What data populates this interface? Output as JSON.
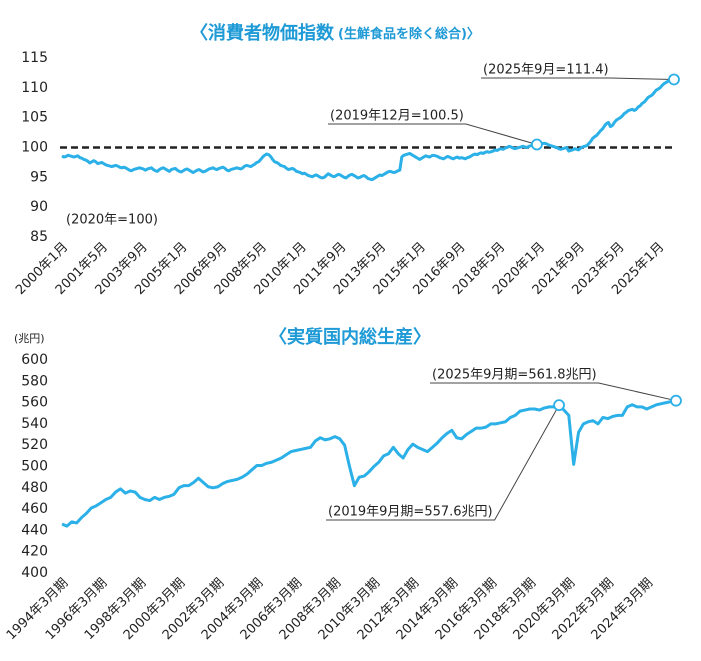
{
  "chart_data": [
    {
      "type": "line",
      "title": "〈消費者物価指数",
      "subtitle": "(生鮮食品を除く総合)〉",
      "note": "(2020年=100)",
      "color": "#2bb0e8",
      "ylim": [
        85,
        115
      ],
      "yticks": [
        85,
        90,
        95,
        100,
        105,
        110,
        115
      ],
      "reference_line": 100,
      "annotations": [
        {
          "label": "(2025年9月=111.4)",
          "value": 111.4
        },
        {
          "label": "(2019年12月=100.5)",
          "value": 100.5
        }
      ],
      "categories": [
        "2000年1月",
        null,
        null,
        null,
        null,
        null,
        null,
        null,
        null,
        null,
        null,
        null,
        null,
        null,
        null,
        null,
        null,
        null,
        null,
        null,
        "2001年5月",
        null,
        null,
        null,
        null,
        null,
        null,
        null,
        null,
        null,
        null,
        null,
        null,
        null,
        null,
        null,
        null,
        null,
        null,
        null,
        "2003年9月",
        null,
        null,
        null,
        null,
        null,
        null,
        null,
        null,
        null,
        null,
        null,
        null,
        null,
        null,
        null,
        null,
        null,
        null,
        null,
        "2005年1月",
        null,
        null,
        null,
        null,
        null,
        null,
        null,
        null,
        null,
        null,
        null,
        null,
        null,
        null,
        null,
        null,
        null,
        null,
        null,
        "2006年9月",
        null,
        null,
        null,
        null,
        null,
        null,
        null,
        null,
        null,
        null,
        null,
        null,
        null,
        null,
        null,
        null,
        null,
        null,
        null,
        "2008年5月",
        null,
        null,
        null,
        null,
        null,
        null,
        null,
        null,
        null,
        null,
        null,
        null,
        null,
        null,
        null,
        null,
        null,
        null,
        null,
        "2010年1月",
        null,
        null,
        null,
        null,
        null,
        null,
        null,
        null,
        null,
        null,
        null,
        null,
        null,
        null,
        null,
        null,
        null,
        null,
        null,
        "2011年9月",
        null,
        null,
        null,
        null,
        null,
        null,
        null,
        null,
        null,
        null,
        null,
        null,
        null,
        null,
        null,
        null,
        null,
        null,
        null,
        "2013年5月",
        null,
        null,
        null,
        null,
        null,
        null,
        null,
        null,
        null,
        null,
        null,
        null,
        null,
        null,
        null,
        null,
        null,
        null,
        null,
        "2015年1月",
        null,
        null,
        null,
        null,
        null,
        null,
        null,
        null,
        null,
        null,
        null,
        null,
        null,
        null,
        null,
        null,
        null,
        null,
        null,
        "2016年9月",
        null,
        null,
        null,
        null,
        null,
        null,
        null,
        null,
        null,
        null,
        null,
        null,
        null,
        null,
        null,
        null,
        null,
        null,
        null,
        "2018年5月",
        null,
        null,
        null,
        null,
        null,
        null,
        null,
        null,
        null,
        null,
        null,
        null,
        null,
        null,
        null,
        null,
        null,
        null,
        null,
        "2020年1月",
        null,
        null,
        null,
        null,
        null,
        null,
        null,
        null,
        null,
        null,
        null,
        null,
        null,
        null,
        null,
        null,
        null,
        null,
        null,
        "2021年9月",
        null,
        null,
        null,
        null,
        null,
        null,
        null,
        null,
        null,
        null,
        null,
        null,
        null,
        null,
        null,
        null,
        null,
        null,
        null,
        "2023年5月",
        null,
        null,
        null,
        null,
        null,
        null,
        null,
        null,
        null,
        null,
        null,
        null,
        null,
        null,
        null,
        null,
        null,
        null,
        null,
        "2025年1月",
        null,
        null,
        null,
        null,
        null,
        null,
        null,
        null
      ],
      "values": [
        98.6,
        98.4,
        98.5,
        98.7,
        98.6,
        98.5,
        98.4,
        98.5,
        98.6,
        98.3,
        98.2,
        98.0,
        97.9,
        97.7,
        97.4,
        97.6,
        97.8,
        97.6,
        97.3,
        97.4,
        97.5,
        97.3,
        97.1,
        97.0,
        96.9,
        96.8,
        96.9,
        97.0,
        96.9,
        96.7,
        96.6,
        96.7,
        96.6,
        96.4,
        96.2,
        96.1,
        96.3,
        96.4,
        96.5,
        96.6,
        96.5,
        96.4,
        96.2,
        96.4,
        96.5,
        96.6,
        96.3,
        96.1,
        96.0,
        96.3,
        96.5,
        96.6,
        96.4,
        96.2,
        96.0,
        96.3,
        96.4,
        96.5,
        96.2,
        96.0,
        95.9,
        96.1,
        96.3,
        96.4,
        96.2,
        96.0,
        95.8,
        96.0,
        96.2,
        96.3,
        96.1,
        95.9,
        96.0,
        96.2,
        96.4,
        96.5,
        96.6,
        96.4,
        96.3,
        96.5,
        96.6,
        96.7,
        96.5,
        96.2,
        96.1,
        96.3,
        96.4,
        96.5,
        96.6,
        96.5,
        96.4,
        96.6,
        96.9,
        97.0,
        96.9,
        96.8,
        97.0,
        97.2,
        97.5,
        97.6,
        98.0,
        98.4,
        98.7,
        98.9,
        98.8,
        98.5,
        98.0,
        97.6,
        97.5,
        97.3,
        97.0,
        96.9,
        96.8,
        96.5,
        96.3,
        96.4,
        96.5,
        96.3,
        96.0,
        95.9,
        95.8,
        95.6,
        95.7,
        95.5,
        95.3,
        95.2,
        95.1,
        95.3,
        95.4,
        95.2,
        95.0,
        94.9,
        95.0,
        95.3,
        95.6,
        95.4,
        95.2,
        95.1,
        95.3,
        95.5,
        95.4,
        95.2,
        95.0,
        94.9,
        95.2,
        95.4,
        95.5,
        95.3,
        95.1,
        94.9,
        95.0,
        95.2,
        95.3,
        95.1,
        94.8,
        94.7,
        94.6,
        94.8,
        95.0,
        95.2,
        95.4,
        95.3,
        95.5,
        95.7,
        95.9,
        96.0,
        95.9,
        95.8,
        95.9,
        96.1,
        96.2,
        98.4,
        98.7,
        98.8,
        98.9,
        99.0,
        98.8,
        98.6,
        98.4,
        98.2,
        98.0,
        98.2,
        98.4,
        98.6,
        98.5,
        98.4,
        98.6,
        98.7,
        98.6,
        98.5,
        98.3,
        98.2,
        98.1,
        98.3,
        98.5,
        98.4,
        98.2,
        98.1,
        98.3,
        98.4,
        98.2,
        98.3,
        98.2,
        98.1,
        98.3,
        98.4,
        98.6,
        98.8,
        98.9,
        98.8,
        99.0,
        99.1,
        99.0,
        99.2,
        99.3,
        99.2,
        99.3,
        99.4,
        99.6,
        99.5,
        99.7,
        99.8,
        99.7,
        99.9,
        100.0,
        100.2,
        100.1,
        99.9,
        99.8,
        99.9,
        100.0,
        100.1,
        100.2,
        100.1,
        100.0,
        100.2,
        100.3,
        100.4,
        100.6,
        100.5,
        100.4,
        100.6,
        100.7,
        100.7,
        100.6,
        100.4,
        100.3,
        100.2,
        100.1,
        100.0,
        99.8,
        99.7,
        99.8,
        99.9,
        100.0,
        99.4,
        99.5,
        99.6,
        99.8,
        99.7,
        99.6,
        99.9,
        100.1,
        100.2,
        100.3,
        100.6,
        101.0,
        101.5,
        101.8,
        102.0,
        102.4,
        102.8,
        103.1,
        103.6,
        104.0,
        104.2,
        103.5,
        103.7,
        104.2,
        104.6,
        104.8,
        105.0,
        105.3,
        105.7,
        105.9,
        106.2,
        106.3,
        106.4,
        106.2,
        106.4,
        106.8,
        107.0,
        107.4,
        107.6,
        108.0,
        108.4,
        108.6,
        108.8,
        109.2,
        109.6,
        109.8,
        110.0,
        110.4,
        110.7,
        110.9,
        111.1,
        111.2,
        111.3,
        111.4
      ]
    },
    {
      "type": "line",
      "title": "〈実質国内総生産〉",
      "y_label": "(兆円)",
      "color": "#2bb0e8",
      "ylim": [
        400,
        600
      ],
      "yticks": [
        400,
        420,
        440,
        460,
        480,
        500,
        520,
        540,
        560,
        580,
        600
      ],
      "annotations": [
        {
          "label": "(2025年9月期=561.8兆円)",
          "value": 561.8
        },
        {
          "label": "(2019年9月期=557.6兆円)",
          "value": 557.6
        }
      ],
      "categories": [
        "1994年3月期",
        null,
        null,
        null,
        null,
        null,
        null,
        null,
        "1996年3月期",
        null,
        null,
        null,
        null,
        null,
        null,
        null,
        "1998年3月期",
        null,
        null,
        null,
        null,
        null,
        null,
        null,
        "2000年3月期",
        null,
        null,
        null,
        null,
        null,
        null,
        null,
        "2002年3月期",
        null,
        null,
        null,
        null,
        null,
        null,
        null,
        "2004年3月期",
        null,
        null,
        null,
        null,
        null,
        null,
        null,
        "2006年3月期",
        null,
        null,
        null,
        null,
        null,
        null,
        null,
        "2008年3月期",
        null,
        null,
        null,
        null,
        null,
        null,
        null,
        "2010年3月期",
        null,
        null,
        null,
        null,
        null,
        null,
        null,
        "2012年3月期",
        null,
        null,
        null,
        null,
        null,
        null,
        null,
        "2014年3月期",
        null,
        null,
        null,
        null,
        null,
        null,
        null,
        "2016年3月期",
        null,
        null,
        null,
        null,
        null,
        null,
        null,
        "2018年3月期",
        null,
        null,
        null,
        null,
        null,
        null,
        null,
        "2020年3月期",
        null,
        null,
        null,
        null,
        null,
        null,
        null,
        "2022年3月期",
        null,
        null,
        null,
        null,
        null,
        null,
        null,
        "2024年3月期",
        null,
        null,
        null,
        null,
        null,
        null
      ],
      "values": [
        446,
        444,
        448,
        447,
        452,
        456,
        461,
        463,
        466,
        469,
        471,
        476,
        479,
        475,
        477,
        476,
        471,
        469,
        468,
        471,
        469,
        471,
        472,
        474,
        480,
        482,
        482,
        485,
        489,
        485,
        481,
        480,
        481,
        484,
        486,
        487,
        488,
        490,
        493,
        497,
        501,
        501,
        503,
        504,
        506,
        508,
        511,
        514,
        515,
        516,
        517,
        518,
        524,
        527,
        525,
        526,
        528,
        526,
        520,
        500,
        482,
        490,
        491,
        495,
        500,
        504,
        510,
        512,
        518,
        512,
        508,
        516,
        521,
        518,
        516,
        514,
        518,
        522,
        527,
        531,
        534,
        527,
        526,
        530,
        533,
        536,
        536,
        537,
        540,
        540,
        541,
        542,
        546,
        548,
        552,
        553,
        554,
        554,
        553,
        555,
        556,
        556,
        557.6,
        553,
        548,
        502,
        532,
        540,
        542,
        543,
        540,
        546,
        545,
        547,
        548,
        548,
        556,
        558,
        556,
        556,
        554,
        556,
        558,
        559,
        560,
        561,
        561.8
      ]
    }
  ]
}
